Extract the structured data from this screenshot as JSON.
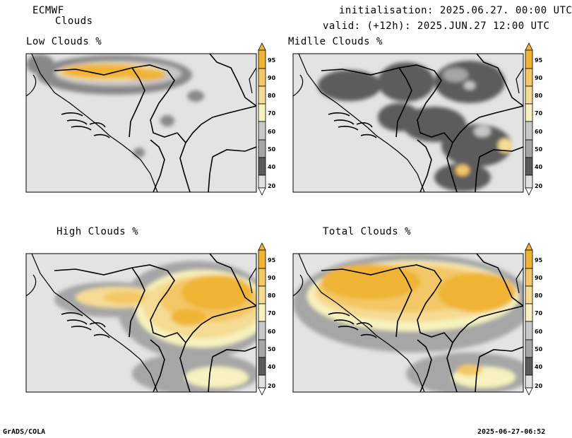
{
  "header": {
    "model": "ECMWF",
    "product": "Clouds",
    "init_label": "initialisation: 2025.06.27. 00:00 UTC",
    "valid_label": "valid: (+12h): 2025.JUN.27 12:00 UTC"
  },
  "panels": [
    {
      "title": "Low Clouds %"
    },
    {
      "title": "Midlle Clouds %"
    },
    {
      "title": "High Clouds %"
    },
    {
      "title": "Total Clouds %"
    }
  ],
  "colorbar": {
    "labels": [
      "95",
      "90",
      "80",
      "70",
      "60",
      "50",
      "40",
      "20"
    ],
    "colors": [
      "#f0b435",
      "#f3c766",
      "#f5dc94",
      "#f7f2bf",
      "#c8c8c8",
      "#a6a6a6",
      "#888888",
      "#5c5c5c"
    ],
    "background": "#e3e3e3"
  },
  "footer": {
    "left": "GrADS/COLA",
    "right": "2025-06-27-06:52"
  }
}
